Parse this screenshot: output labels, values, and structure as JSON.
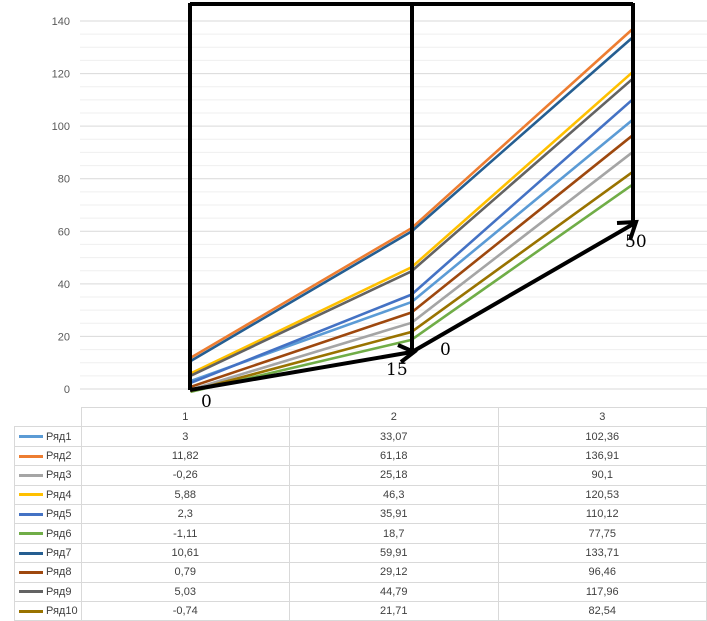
{
  "chart_data": {
    "type": "line",
    "categories": [
      "1",
      "2",
      "3"
    ],
    "ylim": [
      0,
      140
    ],
    "yticks": [
      0,
      20,
      40,
      60,
      80,
      100,
      120,
      140
    ],
    "grid": true,
    "legend": "data-table-left",
    "series": [
      {
        "name": "Ряд1",
        "values": [
          "3",
          "33,07",
          "102,36"
        ],
        "color": "#5b9bd5"
      },
      {
        "name": "Ряд2",
        "values": [
          "11,82",
          "61,18",
          "136,91"
        ],
        "color": "#ed7d31"
      },
      {
        "name": "Ряд3",
        "values": [
          "-0,26",
          "25,18",
          "90,1"
        ],
        "color": "#a5a5a5"
      },
      {
        "name": "Ряд4",
        "values": [
          "5,88",
          "46,3",
          "120,53"
        ],
        "color": "#ffc000"
      },
      {
        "name": "Ряд5",
        "values": [
          "2,3",
          "35,91",
          "110,12"
        ],
        "color": "#4472c4"
      },
      {
        "name": "Ряд6",
        "values": [
          "-1,11",
          "18,7",
          "77,75"
        ],
        "color": "#70ad47"
      },
      {
        "name": "Ряд7",
        "values": [
          "10,61",
          "59,91",
          "133,71"
        ],
        "color": "#255e91"
      },
      {
        "name": "Ряд8",
        "values": [
          "0,79",
          "29,12",
          "96,46"
        ],
        "color": "#9e480e"
      },
      {
        "name": "Ряд9",
        "values": [
          "5,03",
          "44,79",
          "117,96"
        ],
        "color": "#636363"
      },
      {
        "name": "Ряд10",
        "values": [
          "-0,74",
          "21,71",
          "82,54"
        ],
        "color": "#997300"
      }
    ],
    "annotations": [
      "0",
      "15",
      "0",
      "50"
    ]
  }
}
